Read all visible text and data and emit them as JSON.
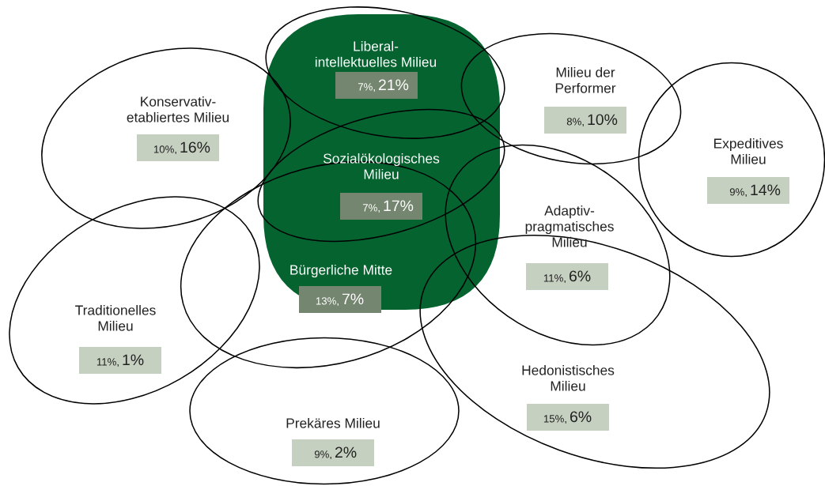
{
  "chart_data": {
    "type": "other",
    "categories": [
      "Liberal-\nintellektuelles Milieu",
      "Milieu der\nPerformer",
      "Konservativ-\netabliertes Milieu",
      "Expeditives\nMilieu",
      "Sozialökologisches\nMilieu",
      "Adaptiv-\npragmatisches\nMilieu",
      "Bürgerliche Mitte",
      "Traditionelles\nMilieu",
      "Hedonistisches\nMilieu",
      "Prekäres Milieu"
    ],
    "series": [
      {
        "colors": [
          "#74866f",
          "#c6d0c0",
          "#c6d0c0",
          "#c6d0c0",
          "#74866f",
          "#c6d0c0",
          "#74866f",
          "#c6d0c0",
          "#c6d0c0",
          "#c6d0c0"
        ],
        "values": [
          7,
          8,
          10,
          9,
          7,
          11,
          13,
          11,
          15,
          9
        ],
        "value_labels": [
          "7%,",
          "8%,",
          "10%,",
          "9%,",
          "7%,",
          "11%,",
          "13%,",
          "11%,",
          "15%,",
          "9%,"
        ]
      },
      {
        "values": [
          21,
          10,
          16,
          14,
          17,
          6,
          7,
          1,
          6,
          2
        ],
        "value_labels": [
          "21%",
          "10%",
          "16%",
          "14%",
          "17%",
          "6%",
          "7%",
          "1%",
          "6%",
          "2%"
        ]
      }
    ]
  }
}
